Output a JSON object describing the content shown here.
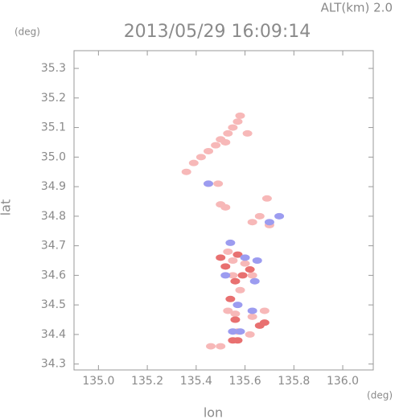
{
  "chart_data": {
    "type": "scatter",
    "title": "2013/05/29 16:09:14",
    "subtitle": "ALT(km) 2.0",
    "y_unit": "(deg)",
    "x_unit": "(deg)",
    "x_label": "lon",
    "y_label": "lat",
    "xlim": [
      134.9,
      136.125
    ],
    "ylim": [
      34.28,
      35.36
    ],
    "xticks": [
      {
        "value": 135,
        "label": "135.0"
      },
      135.2,
      135.4,
      135.6,
      135.8,
      {
        "value": 136,
        "label": "136.0"
      }
    ],
    "yticks": [
      34.3,
      34.4,
      34.5,
      34.6,
      34.7,
      34.8,
      34.9,
      {
        "value": 35,
        "label": "35.0"
      },
      35.1,
      35.2,
      35.3
    ],
    "series": [
      {
        "color": "#f7b8b8",
        "x": [
          135.36,
          135.39,
          135.42,
          135.45,
          135.48,
          135.5,
          135.53,
          135.55,
          135.57,
          135.58,
          135.61,
          135.52,
          135.45,
          135.49,
          135.5,
          135.52,
          135.63,
          135.66,
          135.69,
          135.7,
          135.53,
          135.55,
          135.6,
          135.63,
          135.55,
          135.58,
          135.53,
          135.56,
          135.63,
          135.68,
          135.57,
          135.62,
          135.46,
          135.5
        ],
        "y": [
          34.95,
          34.98,
          35.0,
          35.02,
          35.04,
          35.06,
          35.08,
          35.1,
          35.12,
          35.14,
          35.08,
          35.05,
          34.91,
          34.91,
          34.84,
          34.83,
          34.78,
          34.8,
          34.86,
          34.77,
          34.68,
          34.65,
          34.64,
          34.6,
          34.6,
          34.55,
          34.48,
          34.47,
          34.46,
          34.48,
          34.41,
          34.4,
          34.36,
          34.36
        ]
      },
      {
        "color": "#e87070",
        "x": [
          135.5,
          135.57,
          135.62,
          135.56,
          135.59,
          135.54,
          135.56,
          135.66,
          135.68,
          135.55,
          135.57,
          135.52
        ],
        "y": [
          34.66,
          34.67,
          34.62,
          34.58,
          34.6,
          34.52,
          34.45,
          34.43,
          34.44,
          34.38,
          34.38,
          34.63
        ]
      },
      {
        "color": "#9c9cf0",
        "x": [
          135.54,
          135.6,
          135.65,
          135.64,
          135.52,
          135.57,
          135.55,
          135.58,
          135.7,
          135.74,
          135.45,
          135.63
        ],
        "y": [
          34.71,
          34.66,
          34.65,
          34.58,
          34.6,
          34.5,
          34.41,
          34.41,
          34.78,
          34.8,
          34.91,
          34.48
        ]
      }
    ]
  }
}
